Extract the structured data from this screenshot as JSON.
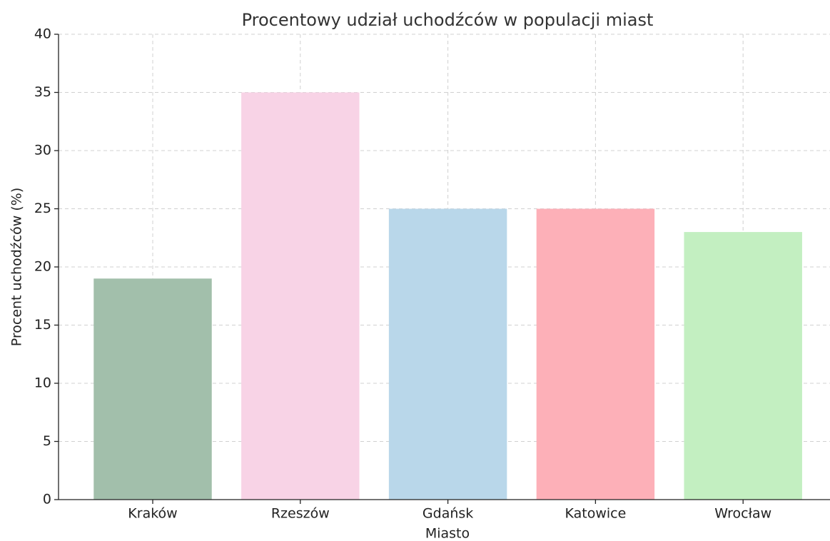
{
  "chart_data": {
    "type": "bar",
    "title": "Procentowy udział uchodźców w populacji miast",
    "xlabel": "Miasto",
    "ylabel": "Procent uchodźców (%)",
    "categories": [
      "Kraków",
      "Rzeszów",
      "Gdańsk",
      "Katowice",
      "Wrocław"
    ],
    "values": [
      19,
      35,
      25,
      25,
      23
    ],
    "colors": [
      "#a2bfab",
      "#f8d3e6",
      "#b9d7ea",
      "#fdb0b8",
      "#c3efc1"
    ],
    "ylim": [
      0,
      40
    ],
    "yticks": [
      0,
      5,
      10,
      15,
      20,
      25,
      30,
      35,
      40
    ],
    "grid": true
  }
}
